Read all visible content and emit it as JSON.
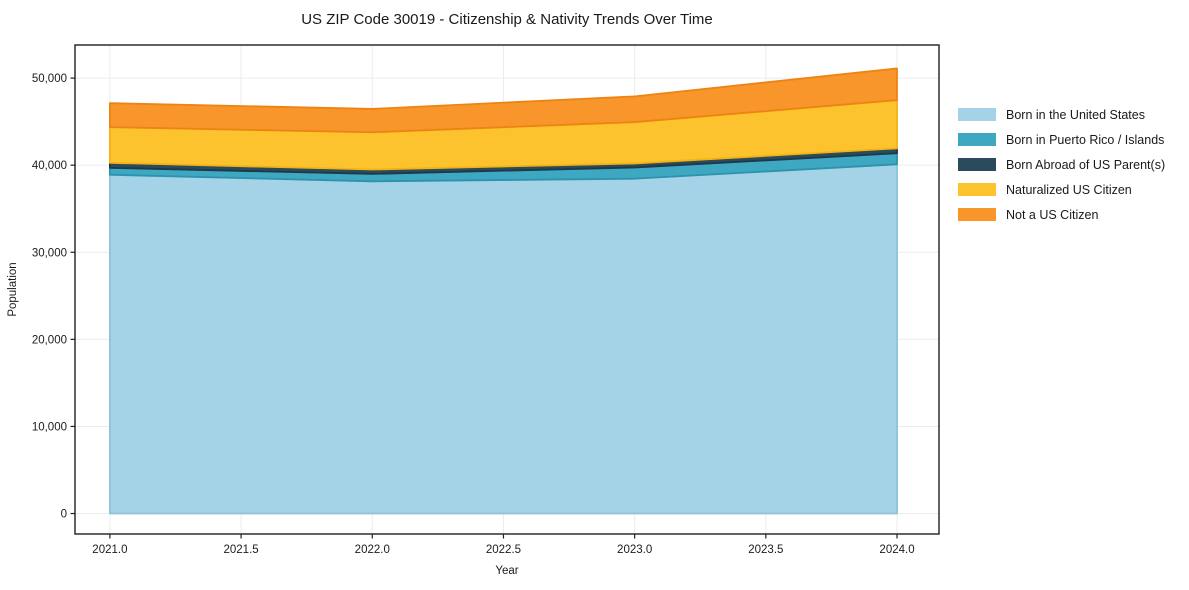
{
  "chart_data": {
    "type": "area",
    "stacked": true,
    "title": "US ZIP Code 30019 - Citizenship & Nativity Trends Over Time",
    "xlabel": "Year",
    "ylabel": "Population",
    "x": [
      2021,
      2022,
      2023,
      2024
    ],
    "series": [
      {
        "name": "Born in the United States",
        "color": "#a4d2e6",
        "edge": "#8cc3da",
        "values": [
          38900,
          38150,
          38450,
          40100
        ]
      },
      {
        "name": "Born in Puerto Rico / Islands",
        "color": "#3ea7c2",
        "edge": "#2d93ac",
        "values": [
          800,
          850,
          1290,
          1270
        ]
      },
      {
        "name": "Born Abroad of US Parent(s)",
        "color": "#2a4a5e",
        "edge": "#1e3948",
        "values": [
          570,
          500,
          460,
          560
        ]
      },
      {
        "name": "Naturalized US Citizen",
        "color": "#fcc32e",
        "edge": "#f3b312",
        "values": [
          4100,
          4280,
          4750,
          5540
        ]
      },
      {
        "name": "Not a US Citizen",
        "color": "#f8962b",
        "edge": "#ec8414",
        "values": [
          2750,
          2680,
          2950,
          3640
        ]
      }
    ],
    "x_ticks": [
      "2021.0",
      "2021.5",
      "2022.0",
      "2022.5",
      "2023.0",
      "2023.5",
      "2024.0"
    ],
    "x_tick_values": [
      2021.0,
      2021.5,
      2022.0,
      2022.5,
      2023.0,
      2023.5,
      2024.0
    ],
    "y_ticks": [
      "0",
      "10,000",
      "20,000",
      "30,000",
      "40,000",
      "50,000"
    ],
    "y_tick_values": [
      0,
      10000,
      20000,
      30000,
      40000,
      50000
    ],
    "xlim": [
      2020.867,
      2024.16
    ],
    "ylim": [
      -2350,
      53800
    ],
    "grid": true,
    "legend_position": "right",
    "colors": {
      "grid": "#ececec",
      "spine": "#1f1f1f",
      "background": "#ffffff"
    }
  }
}
